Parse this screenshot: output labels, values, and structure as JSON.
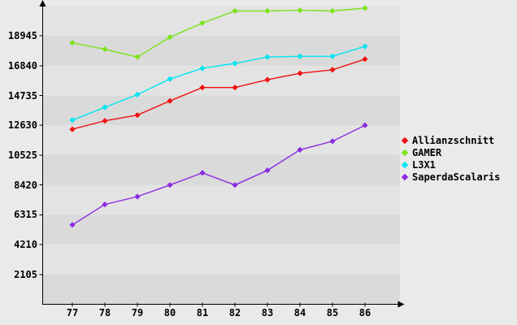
{
  "chart_data": {
    "type": "line",
    "title": "",
    "xlabel": "",
    "ylabel": "",
    "x": [
      77,
      78,
      79,
      80,
      81,
      82,
      83,
      84,
      85,
      86
    ],
    "ylim": [
      0,
      21050
    ],
    "y_ticks": [
      2105,
      4210,
      6315,
      8420,
      10525,
      12630,
      14735,
      16840,
      18945
    ],
    "grid": "alternating-horizontal-bands",
    "legend_position": "right-middle",
    "marker": "diamond",
    "series": [
      {
        "name": "Allianzschnitt",
        "color": "#ee1111",
        "values": [
          12350,
          12950,
          13350,
          14350,
          15300,
          15300,
          15850,
          16300,
          16550,
          17300
        ]
      },
      {
        "name": "GAMER",
        "color": "#7de31d",
        "values": [
          18450,
          18000,
          17450,
          18850,
          19850,
          20700,
          20700,
          20750,
          20700,
          20900
        ]
      },
      {
        "name": "L3X1",
        "color": "#00e5f0",
        "values": [
          13000,
          13900,
          14800,
          15900,
          16650,
          17000,
          17450,
          17500,
          17500,
          18200
        ]
      },
      {
        "name": "SaperdaScalaris",
        "color": "#8a2be2",
        "values": [
          5600,
          7050,
          7600,
          8420,
          9280,
          8420,
          9450,
          10900,
          11500,
          12630
        ]
      }
    ]
  },
  "colors": {
    "page_bg": "#eaeaea",
    "band_light": "#e3e3e3",
    "band_dark": "#dadada",
    "axis": "#000000",
    "text": "#000000"
  }
}
